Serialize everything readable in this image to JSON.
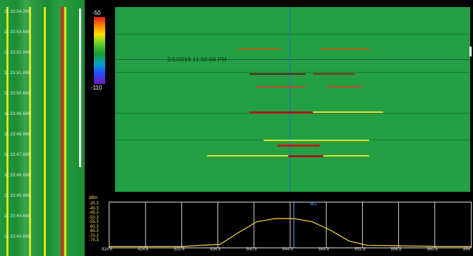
{
  "left_timeline": [
    "11:23:54.298",
    "11:23:53.698",
    "11:23:52.698",
    "11:23:51.698",
    "11:23:50.698",
    "11:23:49.698",
    "11:23:48.698",
    "11:23:47.698",
    "11:23:46.698",
    "11:23:45.698",
    "11:23:44.698",
    "11:23:43.698"
  ],
  "colorbar": {
    "max_label": "-50",
    "min_label": "-110",
    "colors": [
      "#e21a1a",
      "#ff8a00",
      "#ffe000",
      "#1c9c2e",
      "#2a4cff",
      "#6b19b5"
    ]
  },
  "waterfall": {
    "timestamp": "2/1/2016 11:02:04 PM",
    "background_color": "#22a043",
    "marker_color": "#2a66d8"
  },
  "spectrum": {
    "unit": "dBm",
    "marker_label": "M1",
    "y_labels": [
      "-35.3",
      "-40.3",
      "-45.3",
      "-50.3",
      "-55.3",
      "-60.3",
      "-65.3",
      "-70.3",
      "-75.3"
    ],
    "x_labels": [
      "824.8",
      "828.8",
      "832.8",
      "836.8",
      "840.8",
      "844.8",
      "848.8",
      "852.8",
      "856.8",
      "860.8",
      "864"
    ],
    "trace_color": "#ffd84a"
  },
  "chart_data": {
    "type": "line",
    "x": [
      824.8,
      832.8,
      836.8,
      838.8,
      840.8,
      842.8,
      844.8,
      846.8,
      848.8,
      850.8,
      852.8,
      860.8,
      864
    ],
    "values": [
      -75,
      -75,
      -73,
      -62,
      -52,
      -49,
      -49,
      -52,
      -60,
      -70,
      -74,
      -75,
      -75
    ],
    "xlabel": "",
    "ylabel": "dBm",
    "xlim": [
      824.8,
      864
    ],
    "ylim": [
      -76,
      -34
    ]
  }
}
